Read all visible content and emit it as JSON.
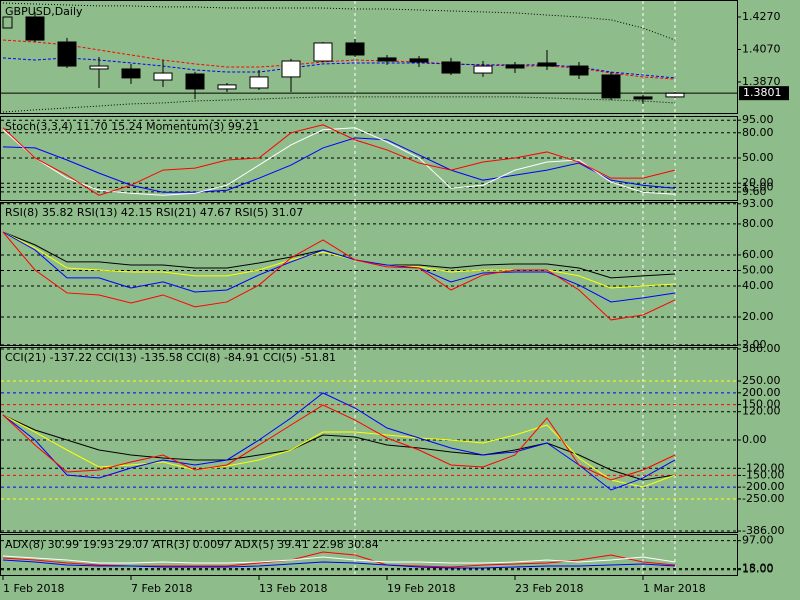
{
  "chart_data": [
    {
      "type": "candlestick",
      "title": "GBPUSD,Daily",
      "categories": [
        "1 Feb 2018",
        null,
        null,
        null,
        "7 Feb 2018",
        null,
        null,
        null,
        "13 Feb 2018",
        null,
        null,
        null,
        "19 Feb 2018",
        null,
        null,
        null,
        "23 Feb 2018",
        null,
        null,
        null,
        "1 Mar 2018",
        null
      ],
      "open": [
        null,
        1.427,
        1.4116,
        1.395,
        1.395,
        1.3882,
        1.3919,
        1.3827,
        1.3833,
        1.3901,
        1.3999,
        1.411,
        1.4018,
        1.4012,
        1.3993,
        1.3925,
        1.3975,
        1.3987,
        1.3968,
        1.3913,
        1.3778,
        1.3778
      ],
      "high": [
        null,
        1.4301,
        1.4141,
        1.4024,
        1.3981,
        1.4005,
        1.3932,
        1.3864,
        1.3944,
        1.4012,
        1.4116,
        1.4135,
        1.4036,
        1.403,
        1.4018,
        1.3999,
        1.3993,
        1.4067,
        1.3993,
        1.3932,
        1.379,
        1.3808
      ],
      "low": [
        null,
        1.4116,
        1.3956,
        1.3833,
        1.3858,
        1.3839,
        1.3765,
        1.3808,
        1.3821,
        1.3808,
        1.3993,
        1.4024,
        1.3975,
        1.3962,
        1.3913,
        1.3901,
        1.3925,
        1.3944,
        1.3888,
        1.3759,
        1.3735,
        1.3772
      ],
      "close": [
        null,
        1.4128,
        1.3968,
        1.3968,
        1.3895,
        1.3925,
        1.3827,
        1.3852,
        1.3901,
        1.3999,
        1.411,
        1.4036,
        1.3999,
        1.3993,
        1.3925,
        1.3968,
        1.3956,
        1.3968,
        1.3913,
        1.3772,
        1.3765,
        1.3801
      ],
      "series": [
        {
          "color": "#000000",
          "style": "dotted",
          "values": [
            1.4356,
            1.435,
            1.4344,
            1.4338,
            1.4338,
            1.4332,
            1.4332,
            1.4325,
            1.4325,
            1.4325,
            1.4325,
            1.4319,
            1.4319,
            1.4313,
            1.4307,
            1.4301,
            1.4295,
            1.4282,
            1.427,
            1.4252,
            1.4202,
            1.4128
          ]
        },
        {
          "color": "#000000",
          "style": "dotted",
          "values": [
            1.3685,
            1.3698,
            1.371,
            1.3722,
            1.3735,
            1.3741,
            1.3753,
            1.3759,
            1.3765,
            1.3772,
            1.3778,
            1.3778,
            1.3778,
            1.3778,
            1.3778,
            1.3778,
            1.3778,
            1.3772,
            1.3765,
            1.3759,
            1.3753,
            1.3741
          ]
        },
        {
          "color": "#ff0000",
          "style": "dashed",
          "values": [
            1.4128,
            1.4116,
            1.4098,
            1.4067,
            1.4036,
            1.4005,
            1.3981,
            1.3962,
            1.3962,
            1.3975,
            1.3993,
            1.4005,
            1.3999,
            1.3993,
            1.3981,
            1.3975,
            1.3968,
            1.3968,
            1.3956,
            1.3925,
            1.3901,
            1.3888
          ]
        },
        {
          "color": "#0000ff",
          "style": "dashed",
          "values": [
            1.4018,
            1.4005,
            1.4018,
            1.4005,
            1.3987,
            1.3968,
            1.3944,
            1.3931,
            1.3931,
            1.3956,
            1.3981,
            1.3987,
            1.3987,
            1.3987,
            1.3981,
            1.3975,
            1.3975,
            1.3975,
            1.3962,
            1.3931,
            1.3913,
            1.3895
          ]
        }
      ],
      "last_price": 1.3801,
      "ylim": [
        1.3679,
        1.4356
      ],
      "yticks": [
        {
          "value": 1.427,
          "label": "1.4270"
        },
        {
          "value": 1.407,
          "label": "1.4070"
        },
        {
          "value": 1.387,
          "label": "1.3870"
        }
      ],
      "grid": false
    },
    {
      "type": "line",
      "title": "Stoch(3,3,4) 11.70 15.24 Momentum(3) 99.21",
      "series": [
        {
          "color": "#0000ff",
          "values": [
            63.2,
            62.0,
            47.6,
            32.0,
            17.6,
            9.2,
            9.2,
            11.6,
            26.0,
            41.6,
            62.0,
            74.0,
            71.6,
            53.6,
            35.6,
            23.6,
            29.6,
            35.6,
            44.0,
            23.6,
            17.6,
            14.0
          ]
        },
        {
          "color": "#ffffff",
          "values": [
            83.6,
            50.0,
            26.0,
            11.6,
            8.0,
            5.6,
            8.0,
            17.6,
            41.6,
            65.6,
            83.6,
            86.0,
            69.2,
            50.0,
            14.0,
            17.6,
            35.6,
            45.2,
            47.6,
            21.2,
            9.2,
            6.8
          ]
        },
        {
          "color": "#ff0000",
          "values": [
            86.0,
            50.0,
            29.6,
            5.6,
            17.6,
            35.6,
            38.0,
            47.6,
            50.0,
            80.0,
            89.6,
            71.6,
            59.6,
            44.0,
            35.6,
            45.2,
            50.0,
            57.2,
            45.2,
            26.0,
            26.0,
            35.6
          ]
        }
      ],
      "ylim": [
        0,
        100
      ],
      "yticks": [
        {
          "value": 95,
          "label": "95.00"
        },
        {
          "value": 80,
          "label": "80.00"
        },
        {
          "value": 50,
          "label": "50.00"
        },
        {
          "value": 20,
          "label": "20.00"
        },
        {
          "value": 15,
          "label": "15.00"
        },
        {
          "value": 9.6,
          "label": "9.60"
        }
      ],
      "grid": true
    },
    {
      "type": "line",
      "title": "RSI(8) 35.82 RSI(13) 42.15 RSI(21) 47.67 RSI(5) 31.07",
      "series": [
        {
          "color": "#000000",
          "values": [
            74.8,
            66.5,
            55.5,
            55.5,
            53.5,
            53.5,
            51.6,
            51.6,
            54.8,
            58.7,
            63.2,
            56.8,
            53.5,
            53.5,
            51.6,
            53.5,
            54.2,
            54.2,
            51.6,
            45.2,
            46.5,
            47.7
          ]
        },
        {
          "color": "#ffff00",
          "values": [
            74.8,
            64.5,
            51.6,
            50.3,
            49.0,
            49.0,
            46.5,
            46.5,
            50.3,
            56.8,
            61.9,
            56.8,
            53.5,
            52.3,
            49.0,
            50.3,
            50.3,
            50.3,
            46.5,
            38.7,
            40.0,
            41.3
          ]
        },
        {
          "color": "#0000ff",
          "values": [
            74.8,
            63.2,
            45.2,
            45.2,
            38.7,
            42.6,
            36.1,
            37.4,
            47.1,
            55.5,
            63.2,
            56.8,
            53.5,
            51.6,
            42.6,
            48.4,
            49.0,
            49.0,
            40.6,
            29.7,
            32.3,
            35.5
          ]
        },
        {
          "color": "#ff0000",
          "values": [
            74.8,
            50.3,
            35.5,
            34.2,
            29.0,
            34.2,
            26.5,
            29.7,
            40.6,
            58.1,
            69.7,
            56.8,
            52.3,
            51.6,
            37.4,
            47.1,
            50.3,
            50.3,
            37.4,
            18.1,
            21.3,
            31.0
          ]
        }
      ],
      "ylim": [
        0,
        93.5
      ],
      "yticks": [
        {
          "value": 93,
          "label": "93.00"
        },
        {
          "value": 80,
          "label": "80.00"
        },
        {
          "value": 60,
          "label": "60.00"
        },
        {
          "value": 50,
          "label": "50.00"
        },
        {
          "value": 40,
          "label": "40.00"
        },
        {
          "value": 20,
          "label": "20.00"
        },
        {
          "value": 2,
          "label": "2.00"
        }
      ],
      "grid": true
    },
    {
      "type": "line",
      "title": "CCI(21) -137.22 CCI(13) -135.58 CCI(8) -84.91 CCI(5) -51.81",
      "series": [
        {
          "color": "#000000",
          "values": [
            105.9,
            42.4,
            0,
            -42.4,
            -63.6,
            -76.3,
            -84.7,
            -84.7,
            -63.6,
            -42.4,
            21.2,
            12.7,
            -21.2,
            -33.9,
            -50.8,
            -63.6,
            -42.4,
            -12.7,
            -63.6,
            -127.1,
            -169.5,
            -148.3
          ]
        },
        {
          "color": "#ffff00",
          "values": [
            105.9,
            33.9,
            -42.4,
            -114.4,
            -105.9,
            -93.2,
            -127.1,
            -110.2,
            -84.7,
            -42.4,
            33.9,
            33.9,
            21.2,
            8.5,
            0,
            -12.7,
            21.2,
            63.6,
            -76.3,
            -169.5,
            -199.2,
            -148.3
          ]
        },
        {
          "color": "#0000ff",
          "values": [
            105.9,
            0,
            -148.3,
            -161.0,
            -118.6,
            -84.7,
            -105.9,
            -84.7,
            0,
            93.2,
            199.2,
            135.6,
            50.8,
            8.5,
            -33.9,
            -63.6,
            -50.8,
            -12.7,
            -105.9,
            -211.9,
            -161.0,
            -84.7
          ]
        },
        {
          "color": "#ff0000",
          "values": [
            105.9,
            -21.2,
            -135.6,
            -127.1,
            -93.2,
            -63.6,
            -127.1,
            -105.9,
            -21.2,
            63.6,
            148.3,
            84.7,
            8.5,
            -42.4,
            -105.9,
            -114.4,
            -63.6,
            93.2,
            -105.9,
            -169.5,
            -127.1,
            -63.6
          ]
        }
      ],
      "ylim": [
        -390,
        390
      ],
      "yticks": [
        {
          "value": 386,
          "label": "386.00"
        },
        {
          "value": 250,
          "label": "250.00"
        },
        {
          "value": 200,
          "label": "200.00"
        },
        {
          "value": 150,
          "label": "150.00"
        },
        {
          "value": 120,
          "label": "120.00"
        },
        {
          "value": 0,
          "label": "0.00"
        },
        {
          "value": -120,
          "label": "-120.00"
        },
        {
          "value": -150,
          "label": "-150.00"
        },
        {
          "value": -200,
          "label": "-200.00"
        },
        {
          "value": -250,
          "label": "-250.00"
        },
        {
          "value": -386,
          "label": "-386.00"
        }
      ],
      "grid_colors": [
        null,
        "#ffff00",
        "#0000ff",
        "#ff0000",
        "#000000",
        null,
        "#000000",
        "#ff0000",
        "#0000ff",
        "#ffff00",
        null
      ],
      "grid": true
    },
    {
      "type": "line",
      "title": "ADX(8) 30.99 19.93 29.07 ATR(3) 0.0097 ADX(5) 39.41 22.98 30.84",
      "series": [
        {
          "color": "#ff0000",
          "values": [
            48.0,
            42.4,
            33.9,
            28.2,
            25.4,
            25.4,
            25.4,
            25.4,
            33.9,
            42.4,
            65.0,
            56.5,
            28.2,
            25.4,
            22.6,
            28.2,
            31.1,
            33.9,
            42.4,
            56.5,
            36.7,
            28.2
          ]
        },
        {
          "color": "#ffffff",
          "values": [
            53.7,
            48.0,
            42.4,
            33.9,
            33.9,
            36.7,
            33.9,
            33.9,
            36.7,
            42.4,
            50.8,
            42.4,
            36.7,
            36.7,
            33.9,
            33.9,
            36.7,
            42.4,
            36.7,
            42.4,
            50.8,
            36.7
          ]
        },
        {
          "color": "#0000ff",
          "values": [
            42.4,
            36.7,
            28.2,
            25.4,
            25.4,
            22.6,
            22.6,
            22.6,
            25.4,
            31.1,
            36.7,
            33.9,
            28.2,
            22.6,
            19.8,
            19.8,
            22.6,
            25.4,
            25.4,
            28.2,
            31.1,
            25.4
          ]
        }
      ],
      "ylim": [
        0,
        113
      ],
      "yticks": [
        {
          "value": 97,
          "label": "97.00"
        },
        {
          "value": 18,
          "label": "18.00"
        },
        {
          "value": 15,
          "label": "15.00"
        }
      ],
      "grid": true
    }
  ]
}
